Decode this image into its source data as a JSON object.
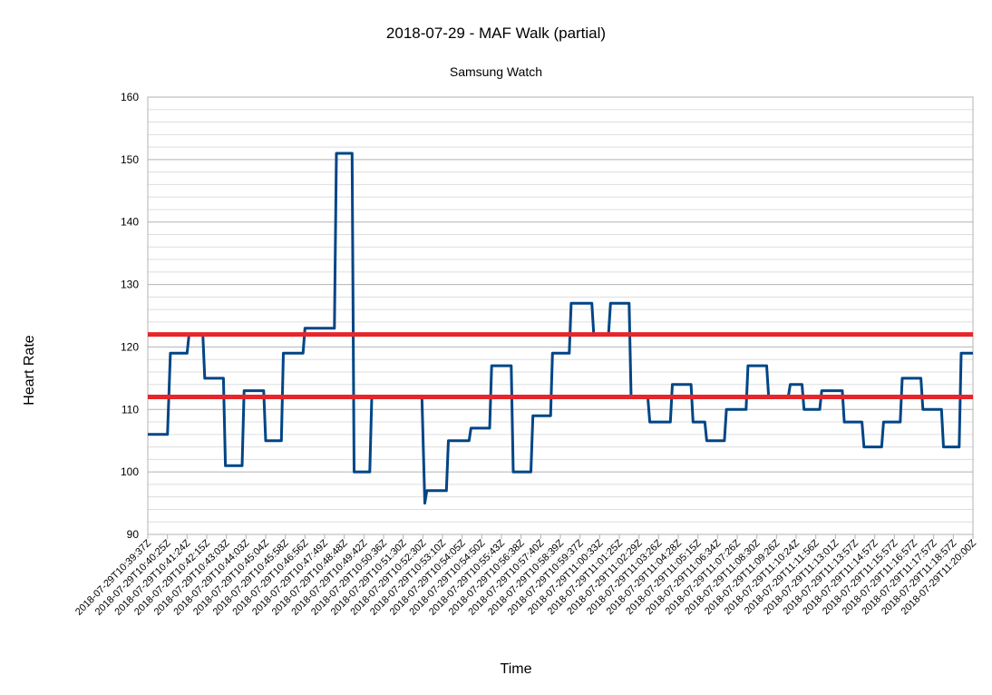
{
  "chart_data": {
    "type": "line",
    "title": "2018-07-29 - MAF Walk (partial)",
    "subtitle": "Samsung Watch",
    "xlabel": "Time",
    "ylabel": "Heart Rate",
    "ylim": [
      90,
      160
    ],
    "yticks": [
      90,
      100,
      110,
      120,
      130,
      140,
      150,
      160
    ],
    "grid": true,
    "legend": "none",
    "x_ticks": [
      "2018-07-29T10:39:37Z",
      "2018-07-29T10:40:25Z",
      "2018-07-29T10:41:24Z",
      "2018-07-29T10:42:15Z",
      "2018-07-29T10:43:03Z",
      "2018-07-29T10:44:03Z",
      "2018-07-29T10:45:04Z",
      "2018-07-29T10:45:58Z",
      "2018-07-29T10:46:56Z",
      "2018-07-29T10:47:49Z",
      "2018-07-29T10:48:48Z",
      "2018-07-29T10:49:42Z",
      "2018-07-29T10:50:36Z",
      "2018-07-29T10:51:30Z",
      "2018-07-29T10:52:30Z",
      "2018-07-29T10:53:10Z",
      "2018-07-29T10:54:05Z",
      "2018-07-29T10:54:50Z",
      "2018-07-29T10:55:43Z",
      "2018-07-29T10:56:38Z",
      "2018-07-29T10:57:40Z",
      "2018-07-29T10:58:39Z",
      "2018-07-29T10:59:37Z",
      "2018-07-29T11:00:33Z",
      "2018-07-29T11:01:25Z",
      "2018-07-29T11:02:29Z",
      "2018-07-29T11:03:26Z",
      "2018-07-29T11:04:28Z",
      "2018-07-29T11:05:15Z",
      "2018-07-29T11:06:34Z",
      "2018-07-29T11:07:26Z",
      "2018-07-29T11:08:30Z",
      "2018-07-29T11:09:26Z",
      "2018-07-29T11:10:24Z",
      "2018-07-29T11:11:56Z",
      "2018-07-29T11:13:01Z",
      "2018-07-29T11:13:57Z",
      "2018-07-29T11:14:57Z",
      "2018-07-29T11:15:57Z",
      "2018-07-29T11:16:57Z",
      "2018-07-29T11:17:57Z",
      "2018-07-29T11:18:57Z",
      "2018-07-29T11:20:00Z"
    ],
    "series": [
      {
        "color": "#004586",
        "points": [
          [
            0,
            106
          ],
          [
            1.0,
            106
          ],
          [
            1.15,
            119
          ],
          [
            2.0,
            119
          ],
          [
            2.1,
            122
          ],
          [
            2.8,
            122
          ],
          [
            2.9,
            115
          ],
          [
            3.85,
            115
          ],
          [
            3.95,
            101
          ],
          [
            4.8,
            101
          ],
          [
            4.9,
            113
          ],
          [
            5.9,
            113
          ],
          [
            6.0,
            105
          ],
          [
            6.8,
            105
          ],
          [
            6.9,
            119
          ],
          [
            7.9,
            119
          ],
          [
            8.0,
            123
          ],
          [
            9.5,
            123
          ],
          [
            9.6,
            151
          ],
          [
            10.4,
            151
          ],
          [
            10.5,
            100
          ],
          [
            11.3,
            100
          ],
          [
            11.4,
            112
          ],
          [
            13.95,
            112
          ],
          [
            14.1,
            95
          ],
          [
            14.2,
            97
          ],
          [
            15.2,
            97
          ],
          [
            15.3,
            105
          ],
          [
            16.35,
            105
          ],
          [
            16.45,
            107
          ],
          [
            17.4,
            107
          ],
          [
            17.5,
            117
          ],
          [
            18.5,
            117
          ],
          [
            18.6,
            100
          ],
          [
            19.5,
            100
          ],
          [
            19.6,
            109
          ],
          [
            20.5,
            109
          ],
          [
            20.6,
            119
          ],
          [
            21.45,
            119
          ],
          [
            21.55,
            127
          ],
          [
            22.6,
            127
          ],
          [
            22.7,
            122
          ],
          [
            23.45,
            122
          ],
          [
            23.55,
            127
          ],
          [
            24.5,
            127
          ],
          [
            24.6,
            112
          ],
          [
            25.45,
            112
          ],
          [
            25.55,
            108
          ],
          [
            26.6,
            108
          ],
          [
            26.7,
            114
          ],
          [
            27.65,
            114
          ],
          [
            27.75,
            108
          ],
          [
            28.35,
            108
          ],
          [
            28.45,
            105
          ],
          [
            29.35,
            105
          ],
          [
            29.45,
            110
          ],
          [
            30.45,
            110
          ],
          [
            30.55,
            117
          ],
          [
            31.5,
            117
          ],
          [
            31.6,
            112
          ],
          [
            32.6,
            112
          ],
          [
            32.7,
            114
          ],
          [
            33.3,
            114
          ],
          [
            33.4,
            110
          ],
          [
            34.2,
            110
          ],
          [
            34.3,
            113
          ],
          [
            35.35,
            113
          ],
          [
            35.45,
            108
          ],
          [
            36.35,
            108
          ],
          [
            36.45,
            104
          ],
          [
            37.35,
            104
          ],
          [
            37.45,
            108
          ],
          [
            38.3,
            108
          ],
          [
            38.4,
            115
          ],
          [
            39.35,
            115
          ],
          [
            39.45,
            110
          ],
          [
            40.4,
            110
          ],
          [
            40.5,
            104
          ],
          [
            41.3,
            104
          ],
          [
            41.4,
            119
          ],
          [
            42,
            119
          ]
        ]
      }
    ],
    "reference_lines": [
      {
        "y": 122,
        "color": "#e6262a"
      },
      {
        "y": 112,
        "color": "#e6262a"
      }
    ]
  }
}
